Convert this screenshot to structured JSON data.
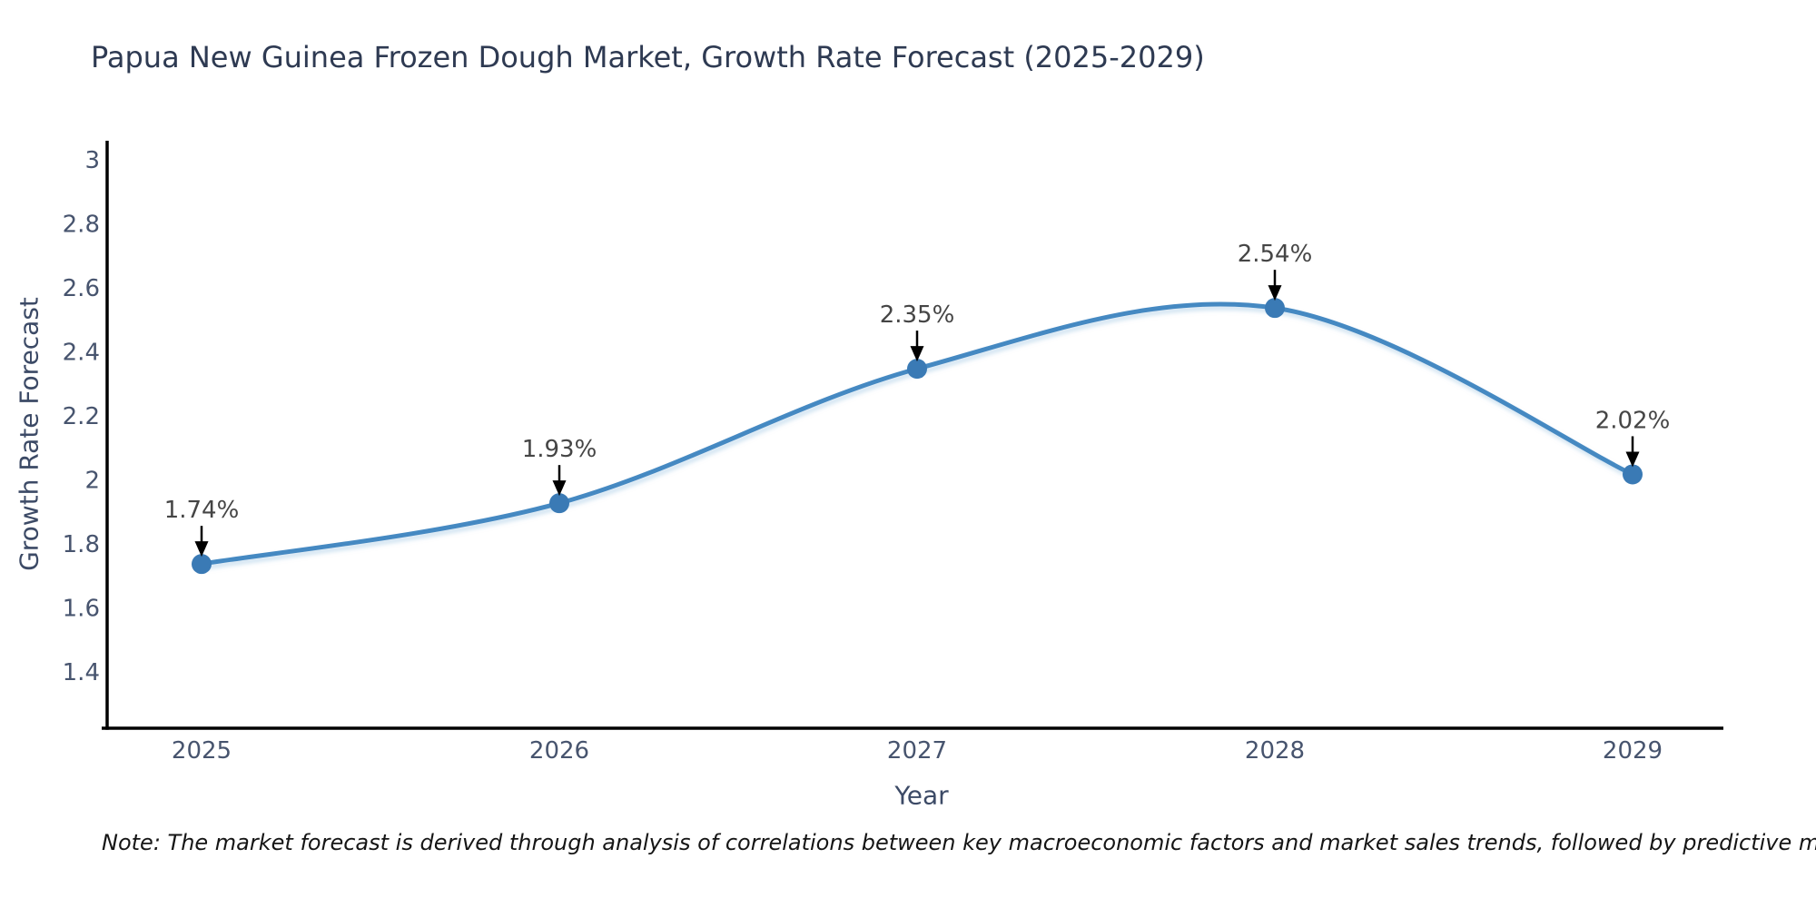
{
  "title": "Papua New Guinea Frozen Dough Market, Growth Rate Forecast (2025-2029)",
  "note": "Note: The market forecast is derived through analysis of correlations between key macroeconomic factors and market sales trends, followed by predictive modeling to project future sales",
  "chart_data": {
    "type": "line",
    "title": "Papua New Guinea Frozen Dough Market, Growth Rate Forecast (2025-2029)",
    "xlabel": "Year",
    "ylabel": "Growth Rate Forecast",
    "x": [
      2025,
      2026,
      2027,
      2028,
      2029
    ],
    "series": [
      {
        "name": "Growth Rate Forecast",
        "values": [
          1.74,
          1.93,
          2.35,
          2.54,
          2.02
        ]
      }
    ],
    "point_labels": [
      "1.74%",
      "1.93%",
      "2.35%",
      "2.54%",
      "2.02%"
    ],
    "x_tick_labels": [
      "2025",
      "2026",
      "2027",
      "2028",
      "2029"
    ],
    "y_ticks": [
      {
        "label": "3",
        "value": 3.0
      },
      {
        "label": "2.8",
        "value": 2.8
      },
      {
        "label": "2.6",
        "value": 2.6
      },
      {
        "label": "2.4",
        "value": 2.4
      },
      {
        "label": "2.2",
        "value": 2.2
      },
      {
        "label": "2",
        "value": 2.0
      },
      {
        "label": "1.8",
        "value": 1.8
      },
      {
        "label": "1.6",
        "value": 1.6
      },
      {
        "label": "1.4",
        "value": 1.4
      }
    ],
    "ylim": [
      1.23,
      3.06
    ],
    "xlim": [
      2024.7,
      2029.26
    ],
    "grid": false,
    "legend_position": "none",
    "curve_style": "smooth-spline",
    "annotation_style": "value label with downward black arrow to each point"
  },
  "colors": {
    "background": "#ffffff",
    "line": "#4589c2",
    "line_glow": "#9cc4e2",
    "marker": "#3a7ab5",
    "spine": "#000000",
    "title_text": "#2e3a52",
    "tick_text": "#47546e",
    "axis_label_text": "#3c4a66",
    "annotation_text": "#454545",
    "arrow": "#000000",
    "note_text": "#151515"
  }
}
